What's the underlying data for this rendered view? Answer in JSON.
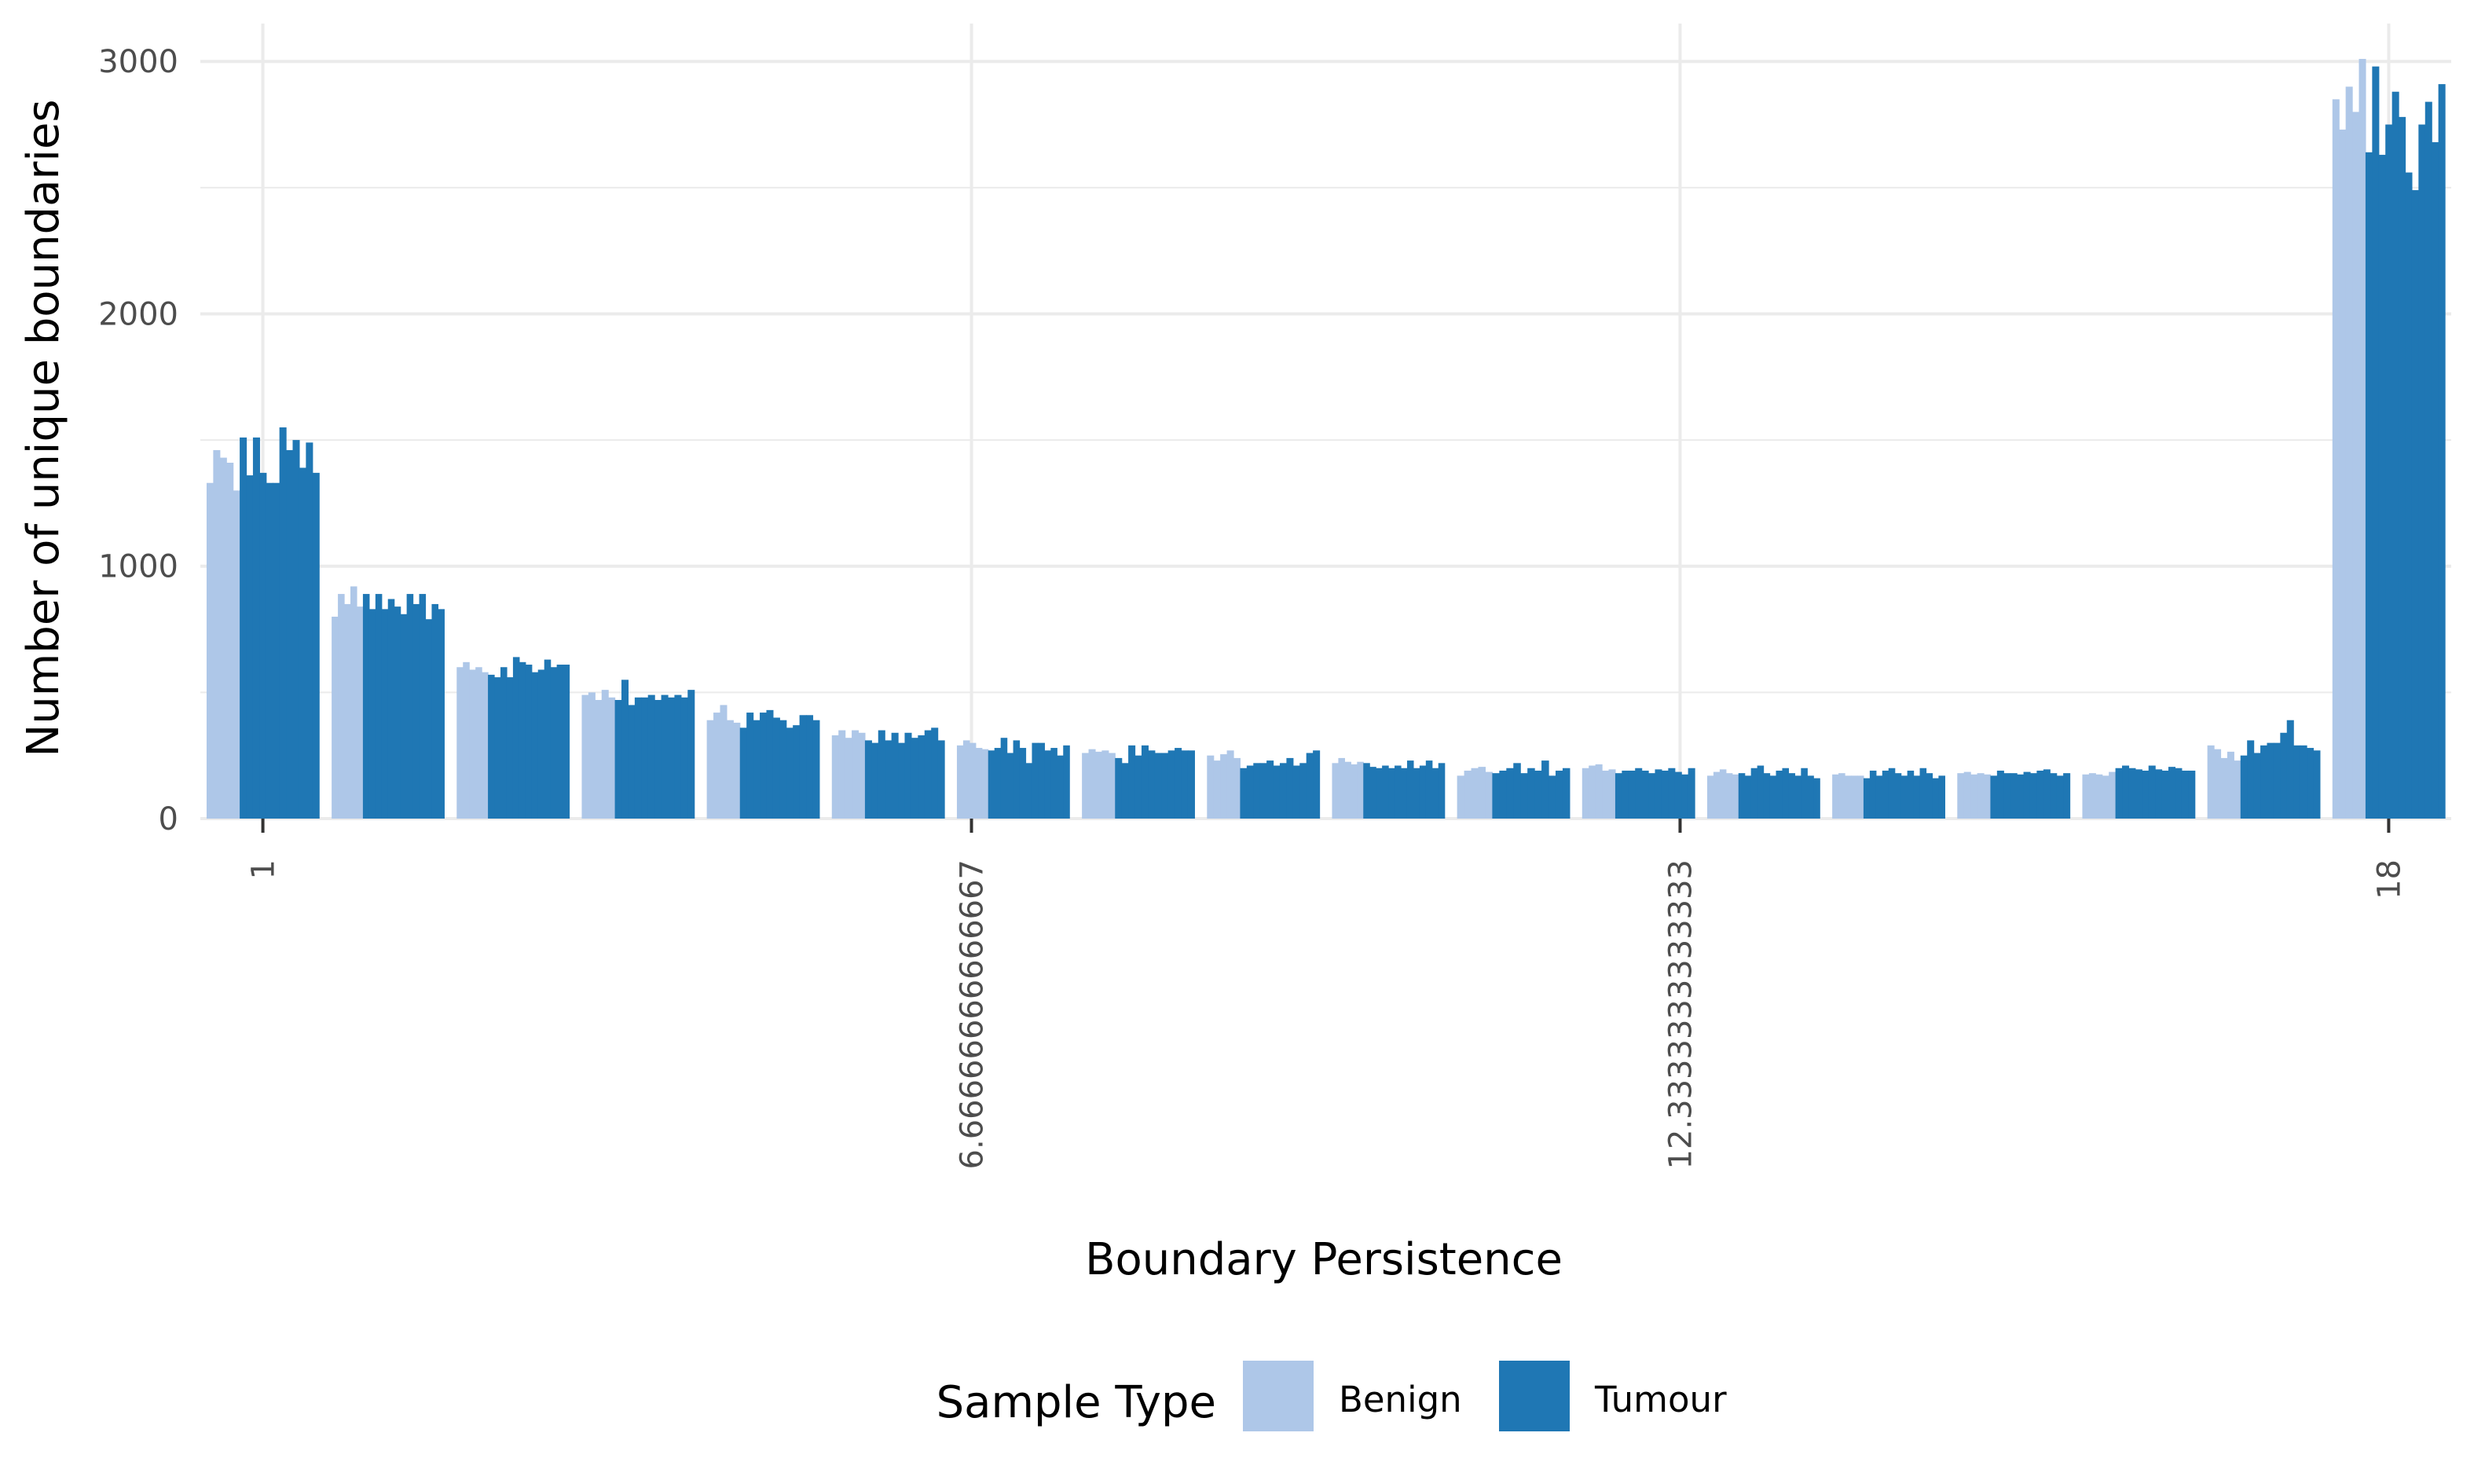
{
  "chart_data": {
    "type": "bar",
    "xlabel": "Boundary Persistence",
    "ylabel": "Number of unique boundaries",
    "x_tick_labels": [
      "1",
      "6.66666666666667",
      "12.3333333333333",
      "18"
    ],
    "x_tick_values": [
      1,
      6.66666666666667,
      12.3333333333333,
      18
    ],
    "xlim": [
      0.5,
      18.5
    ],
    "y_tick_labels": [
      "0",
      "1000",
      "2000",
      "3000"
    ],
    "y_tick_values": [
      0,
      1000,
      2000,
      3000
    ],
    "ylim": [
      0,
      3150
    ],
    "grid": true,
    "legend": {
      "title": "Sample Type",
      "position": "bottom"
    },
    "colors": {
      "Benign": "#aec7e8",
      "Tumour": "#1f77b4"
    },
    "categories": [
      1,
      2,
      3,
      4,
      5,
      6,
      7,
      8,
      9,
      10,
      11,
      12,
      13,
      14,
      15,
      16,
      17,
      18
    ],
    "series": [
      {
        "name": "Benign",
        "values": [
          [
            1330,
            1460,
            1430,
            1410,
            1300
          ],
          [
            800,
            890,
            850,
            920,
            840
          ],
          [
            600,
            620,
            590,
            600,
            580
          ],
          [
            490,
            500,
            470,
            510,
            480
          ],
          [
            390,
            420,
            450,
            390,
            380
          ],
          [
            330,
            350,
            320,
            350,
            340
          ],
          [
            290,
            310,
            300,
            280,
            275
          ],
          [
            260,
            275,
            265,
            270,
            260
          ],
          [
            250,
            230,
            255,
            270,
            240
          ],
          [
            220,
            240,
            225,
            215,
            225
          ],
          [
            170,
            190,
            200,
            205,
            185
          ],
          [
            200,
            210,
            215,
            190,
            195
          ],
          [
            170,
            185,
            195,
            180,
            175
          ],
          [
            175,
            180,
            170,
            170,
            170
          ],
          [
            180,
            185,
            175,
            180,
            175
          ],
          [
            175,
            180,
            175,
            170,
            185
          ],
          [
            290,
            275,
            240,
            265,
            230
          ],
          [
            2850,
            2730,
            2900,
            2800,
            3010
          ]
        ]
      },
      {
        "name": "Tumour",
        "values": [
          [
            1510,
            1360,
            1510,
            1370,
            1330,
            1330,
            1550,
            1460,
            1500,
            1390,
            1490,
            1370
          ],
          [
            890,
            830,
            890,
            830,
            870,
            840,
            810,
            890,
            850,
            890,
            790,
            850,
            830
          ],
          [
            570,
            560,
            600,
            560,
            640,
            620,
            610,
            580,
            590,
            630,
            600,
            610,
            610
          ],
          [
            470,
            550,
            450,
            480,
            480,
            490,
            470,
            490,
            480,
            490,
            480,
            510
          ],
          [
            360,
            420,
            390,
            420,
            430,
            400,
            390,
            360,
            370,
            410,
            410,
            390
          ],
          [
            310,
            300,
            350,
            310,
            340,
            300,
            340,
            320,
            330,
            350,
            360,
            310
          ],
          [
            270,
            280,
            320,
            260,
            310,
            280,
            220,
            300,
            300,
            270,
            280,
            250,
            290
          ],
          [
            240,
            220,
            290,
            250,
            290,
            270,
            260,
            260,
            270,
            280,
            270,
            270
          ],
          [
            200,
            210,
            220,
            220,
            230,
            210,
            220,
            240,
            210,
            220,
            260,
            270
          ],
          [
            220,
            205,
            200,
            210,
            200,
            210,
            200,
            230,
            200,
            210,
            230,
            200,
            220
          ],
          [
            180,
            190,
            200,
            220,
            180,
            200,
            190,
            230,
            170,
            190,
            200
          ],
          [
            180,
            190,
            190,
            200,
            190,
            180,
            195,
            190,
            200,
            185,
            175,
            200
          ],
          [
            180,
            170,
            200,
            210,
            180,
            170,
            190,
            200,
            180,
            170,
            200,
            170,
            160
          ],
          [
            160,
            190,
            170,
            190,
            200,
            180,
            170,
            190,
            170,
            200,
            180,
            160,
            170
          ],
          [
            170,
            190,
            180,
            180,
            175,
            185,
            180,
            190,
            195,
            180,
            170,
            180
          ],
          [
            200,
            210,
            200,
            195,
            190,
            210,
            195,
            190,
            205,
            200,
            190,
            190
          ],
          [
            250,
            310,
            260,
            290,
            300,
            300,
            340,
            390,
            290,
            290,
            280,
            270
          ],
          [
            2640,
            2980,
            2630,
            2750,
            2880,
            2780,
            2560,
            2490,
            2750,
            2840,
            2680,
            2910
          ]
        ]
      }
    ]
  }
}
